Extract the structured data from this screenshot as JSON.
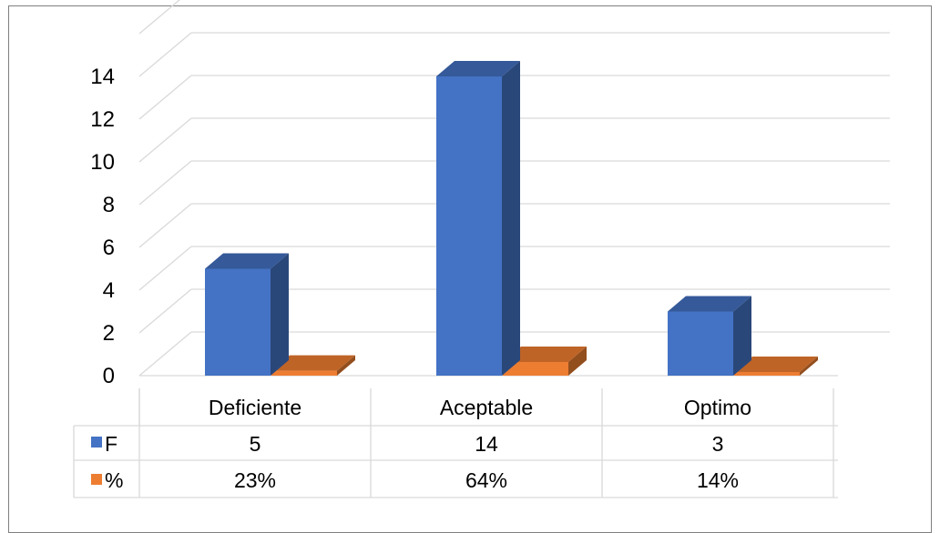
{
  "chart_data": {
    "type": "bar",
    "title": "",
    "xlabel": "",
    "ylabel": "",
    "categories": [
      "Deficiente",
      "Aceptable",
      "Optimo"
    ],
    "ylim": [
      0,
      14
    ],
    "yticks": [
      "0",
      "2",
      "4",
      "6",
      "8",
      "10",
      "12",
      "14"
    ],
    "grid": true,
    "legend": "data-table",
    "series": [
      {
        "name": "F",
        "values": [
          5,
          14,
          3
        ],
        "labels": [
          "5",
          "14",
          "3"
        ],
        "color": "#4472c4"
      },
      {
        "name": "%",
        "values": [
          0.23,
          0.64,
          0.14
        ],
        "labels": [
          "23%",
          "64%",
          "14%"
        ],
        "color": "#ed7d31"
      }
    ]
  }
}
